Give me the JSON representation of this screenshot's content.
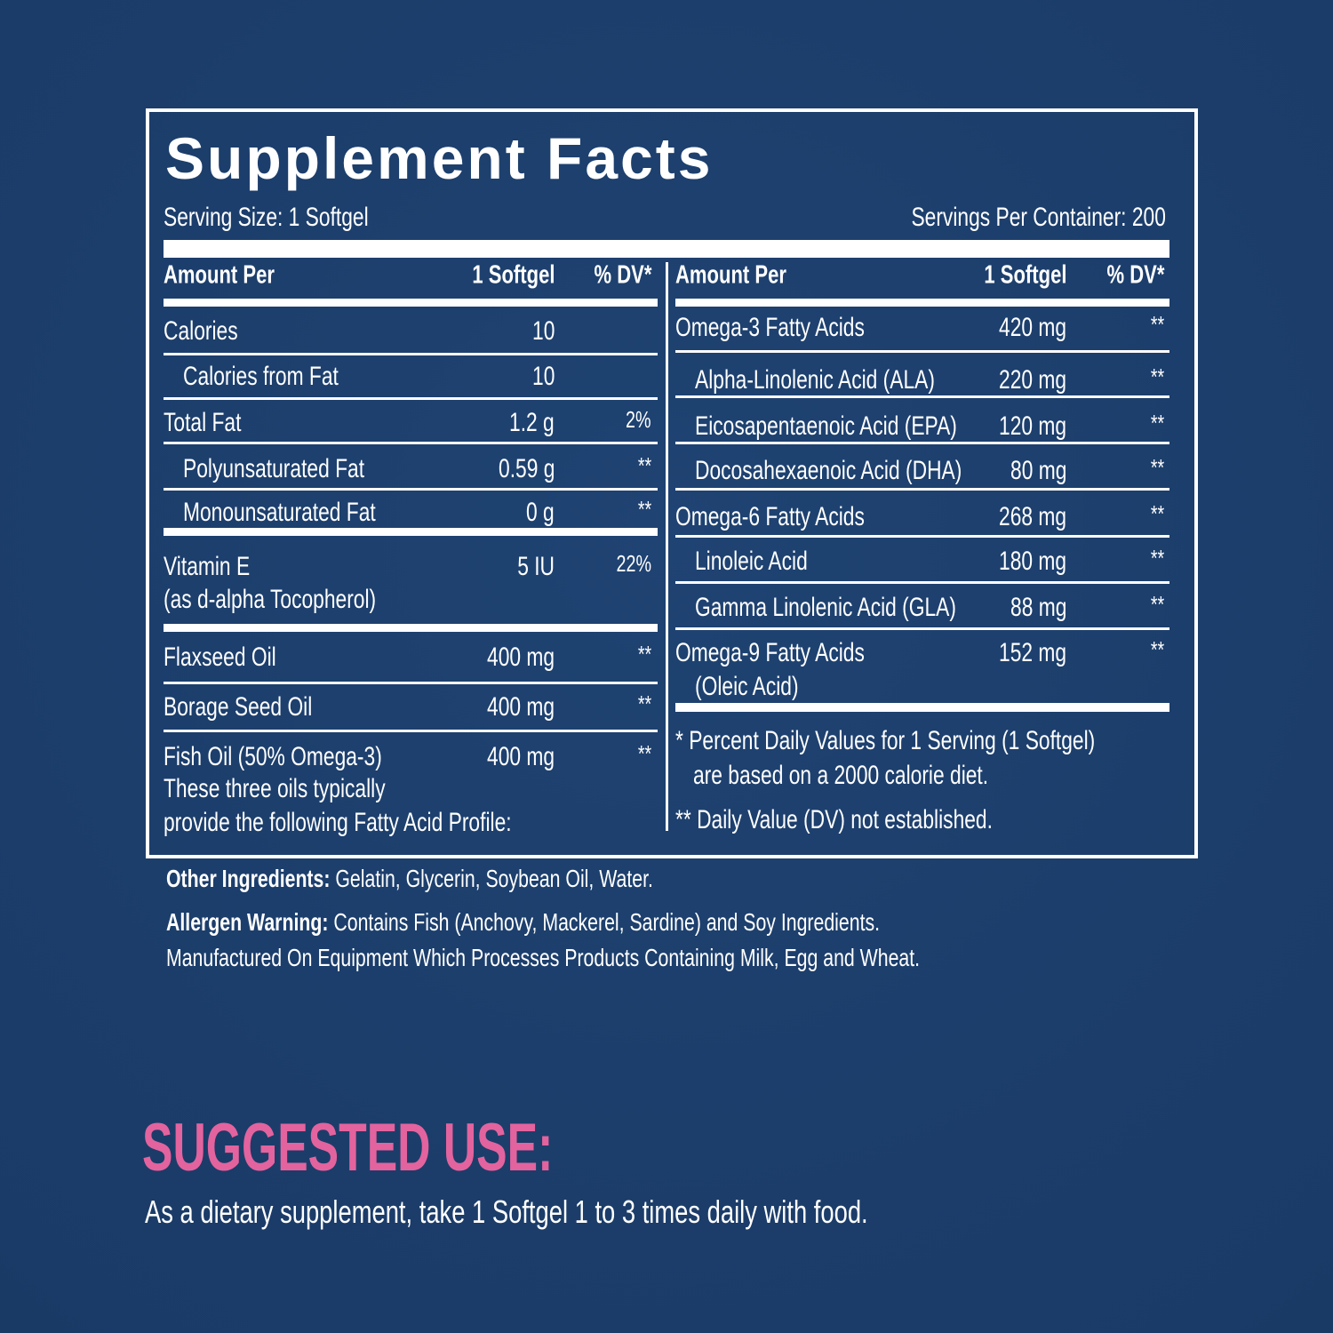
{
  "title": "Supplement Facts",
  "serving_size": "Serving Size: 1 Softgel",
  "servings_per_container": "Servings Per Container: 200",
  "left_panel": {
    "header": [
      "Amount Per",
      "1 Softgel",
      "% DV*"
    ],
    "rows": [
      {
        "name": [
          "Calories"
        ],
        "amount": "10"
      },
      {
        "name": [
          "Calories from Fat"
        ],
        "amount": "10"
      },
      {
        "name": [
          "Total Fat"
        ],
        "amount": "1.2 g",
        "dv": "2%"
      },
      {
        "name": [
          "Polyunsaturated Fat"
        ],
        "amount": "0.59 g",
        "dv": "**"
      },
      {
        "name": [
          "Monounsaturated Fat"
        ],
        "amount": "0 g",
        "dv": "**"
      },
      {
        "name": [
          "Vitamin E",
          "(as d-alpha Tocopherol)"
        ],
        "amount": "5 IU",
        "dv": "22%"
      },
      {
        "name": [
          "Flaxseed Oil"
        ],
        "amount": "400 mg",
        "dv": "**"
      },
      {
        "name": [
          "Borage Seed Oil"
        ],
        "amount": "400 mg",
        "dv": "**"
      },
      {
        "name": [
          "Fish Oil (50% Omega-3)",
          "These three oils typically",
          "provide the following Fatty Acid Profile:"
        ],
        "amount": "400 mg",
        "dv": "**"
      }
    ]
  },
  "right_panel": {
    "header": [
      "Amount Per",
      "1 Softgel",
      "% DV*"
    ],
    "rows": [
      {
        "name": [
          "Omega-3 Fatty Acids"
        ],
        "amount": "420 mg",
        "dv": "**"
      },
      {
        "name": [
          "Alpha-Linolenic Acid (ALA)"
        ],
        "amount": "220 mg",
        "dv": "**"
      },
      {
        "name": [
          "Eicosapentaenoic Acid (EPA)"
        ],
        "amount": "120 mg",
        "dv": "**"
      },
      {
        "name": [
          "Docosahexaenoic Acid (DHA)"
        ],
        "amount": "80 mg",
        "dv": "**"
      },
      {
        "name": [
          "Omega-6 Fatty Acids"
        ],
        "amount": "268 mg",
        "dv": "**"
      },
      {
        "name": [
          "Linoleic Acid"
        ],
        "amount": "180 mg",
        "dv": "**"
      },
      {
        "name": [
          "Gamma Linolenic Acid (GLA)"
        ],
        "amount": "88 mg",
        "dv": "**"
      },
      {
        "name": [
          "Omega-9 Fatty Acids",
          "(Oleic Acid)"
        ],
        "amount": "152 mg",
        "dv": "**"
      }
    ]
  },
  "footnotes": [
    "* Percent Daily Values for 1 Serving (1 Softgel)",
    "are based on a 2000 calorie diet.",
    "** Daily Value (DV) not established."
  ],
  "other_ingredients": {
    "label": "Other Ingredients:",
    "text": "Gelatin, Glycerin, Soybean Oil, Water."
  },
  "allergen_warning": {
    "label": "Allergen Warning:",
    "text": [
      "Contains Fish (Anchovy, Mackerel, Sardine) and Soy Ingredients.",
      "Manufactured On Equipment Which Processes Products Containing Milk, Egg and Wheat."
    ]
  },
  "suggested_use": {
    "heading": "SUGGESTED USE:",
    "text": "As a dietary supplement, take 1 Softgel 1 to 3 times daily with food."
  }
}
